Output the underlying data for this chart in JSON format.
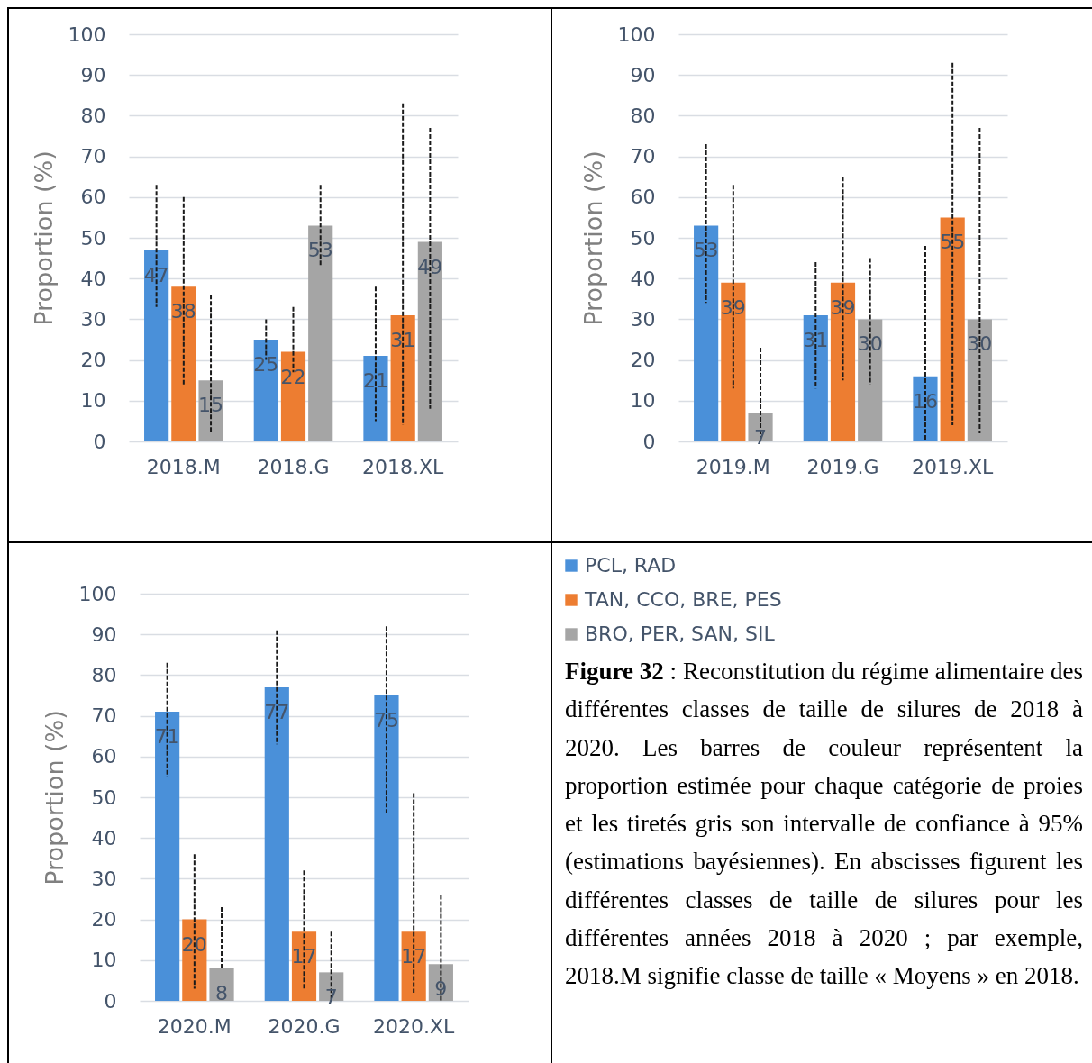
{
  "chart_data": [
    {
      "type": "bar",
      "ylabel": "Proportion (%)",
      "categories": [
        "2018.M",
        "2018.G",
        "2018.XL"
      ],
      "ylim": [
        0,
        100
      ],
      "yticks": [
        0,
        10,
        20,
        30,
        40,
        50,
        60,
        70,
        80,
        90,
        100
      ],
      "grid": "y",
      "legend": false,
      "data_labels": true,
      "series": [
        {
          "color": "#4a90d9",
          "values": [
            47,
            25,
            21
          ],
          "errors": [
            [
              33,
              63
            ],
            [
              20,
              30
            ],
            [
              5,
              38
            ]
          ]
        },
        {
          "color": "#ed7d31",
          "values": [
            38,
            22,
            31
          ],
          "errors": [
            [
              14,
              60
            ],
            [
              17,
              33
            ],
            [
              4,
              83
            ]
          ]
        },
        {
          "color": "#a5a5a5",
          "values": [
            15,
            53,
            49
          ],
          "errors": [
            [
              2,
              36
            ],
            [
              43,
              63
            ],
            [
              8,
              77
            ]
          ]
        }
      ]
    },
    {
      "type": "bar",
      "ylabel": "Proportion (%)",
      "categories": [
        "2019.M",
        "2019.G",
        "2019.XL"
      ],
      "ylim": [
        0,
        100
      ],
      "yticks": [
        0,
        10,
        20,
        30,
        40,
        50,
        60,
        70,
        80,
        90,
        100
      ],
      "grid": "y",
      "legend": false,
      "data_labels": true,
      "series": [
        {
          "color": "#4a90d9",
          "values": [
            53,
            31,
            16
          ],
          "errors": [
            [
              34,
              73
            ],
            [
              13,
              44
            ],
            [
              0,
              48
            ]
          ]
        },
        {
          "color": "#ed7d31",
          "values": [
            39,
            39,
            55
          ],
          "errors": [
            [
              13,
              63
            ],
            [
              15,
              65
            ],
            [
              4,
              93
            ]
          ]
        },
        {
          "color": "#a5a5a5",
          "values": [
            7,
            30,
            30
          ],
          "errors": [
            [
              0,
              23
            ],
            [
              14,
              45
            ],
            [
              2,
              77
            ]
          ]
        }
      ]
    },
    {
      "type": "bar",
      "ylabel": "Proportion (%)",
      "categories": [
        "2020.M",
        "2020.G",
        "2020.XL"
      ],
      "ylim": [
        0,
        100
      ],
      "yticks": [
        0,
        10,
        20,
        30,
        40,
        50,
        60,
        70,
        80,
        90,
        100
      ],
      "grid": "y",
      "legend": "right",
      "data_labels": true,
      "series": [
        {
          "name": "PCL, RAD",
          "color": "#4a90d9",
          "values": [
            71,
            77,
            75
          ],
          "errors": [
            [
              55,
              83
            ],
            [
              63,
              91
            ],
            [
              46,
              92
            ]
          ]
        },
        {
          "name": "TAN, CCO, BRE, PES",
          "color": "#ed7d31",
          "values": [
            20,
            17,
            17
          ],
          "errors": [
            [
              3,
              36
            ],
            [
              3,
              32
            ],
            [
              2,
              51
            ]
          ]
        },
        {
          "name": "BRO, PER, SAN, SIL",
          "color": "#a5a5a5",
          "values": [
            8,
            7,
            9
          ],
          "errors": [
            [
              8,
              23
            ],
            [
              0,
              17
            ],
            [
              0,
              26
            ]
          ]
        }
      ]
    },
    {
      "type": "other",
      "title": "Figure 32",
      "annotations": [
        ": Reconstitution du régime alimentaire des différentes classes de taille de silures de 2018 à 2020. Les barres de couleur représentent la proportion estimée pour chaque catégorie de proies et les tiretés gris son intervalle de confiance à 95% (estimations bayésiennes). En abscisses figurent les différentes classes de taille de silures pour les différentes années 2018 à 2020 ; par exemple, 2018.M signifie classe de taille « Moyens » en 2018."
      ]
    }
  ]
}
